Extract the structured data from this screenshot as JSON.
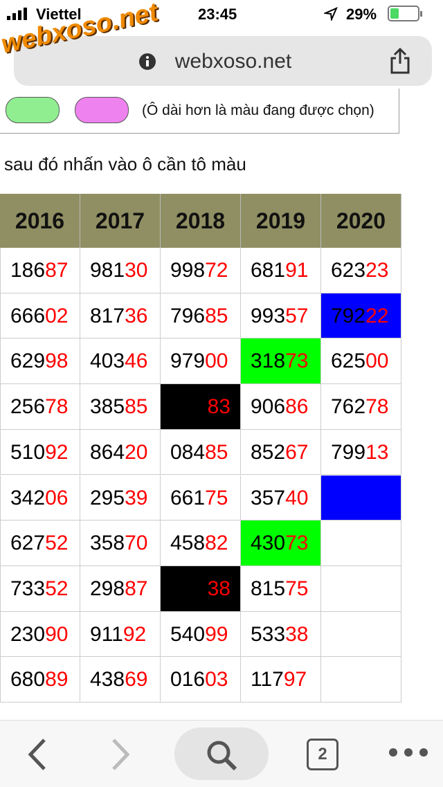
{
  "status_bar": {
    "carrier": "Viettel",
    "time": "23:45",
    "battery": "29%"
  },
  "watermark": "webxoso.net",
  "url_bar": {
    "url": "webxoso.net"
  },
  "color_picker": {
    "note": "(Ô dài hơn là màu đang được chọn)",
    "colors": [
      "#90ee90",
      "#ee82ee"
    ]
  },
  "instruction": "sau đó nhấn vào ô cần tô màu",
  "table": {
    "header_color": "#8f8f63",
    "headers": [
      "2016",
      "2017",
      "2018",
      "2019",
      "2020"
    ],
    "rows": [
      [
        {
          "prefix": "186",
          "suffix": "87"
        },
        {
          "prefix": "981",
          "suffix": "30"
        },
        {
          "prefix": "998",
          "suffix": "72"
        },
        {
          "prefix": "681",
          "suffix": "91"
        },
        {
          "prefix": "623",
          "suffix": "23"
        }
      ],
      [
        {
          "prefix": "666",
          "suffix": "02"
        },
        {
          "prefix": "817",
          "suffix": "36"
        },
        {
          "prefix": "796",
          "suffix": "85"
        },
        {
          "prefix": "993",
          "suffix": "57"
        },
        {
          "prefix": "792",
          "suffix": "22",
          "bg": "#0000ff"
        }
      ],
      [
        {
          "prefix": "629",
          "suffix": "98"
        },
        {
          "prefix": "403",
          "suffix": "46"
        },
        {
          "prefix": "979",
          "suffix": "00"
        },
        {
          "prefix": "318",
          "suffix": "73",
          "bg": "#00ff00"
        },
        {
          "prefix": "625",
          "suffix": "00"
        }
      ],
      [
        {
          "prefix": "256",
          "suffix": "78"
        },
        {
          "prefix": "385",
          "suffix": "85"
        },
        {
          "suffix": "83",
          "bg": "#000000"
        },
        {
          "prefix": "906",
          "suffix": "86"
        },
        {
          "prefix": "762",
          "suffix": "78"
        }
      ],
      [
        {
          "prefix": "510",
          "suffix": "92"
        },
        {
          "prefix": "864",
          "suffix": "20"
        },
        {
          "prefix": "084",
          "suffix": "85"
        },
        {
          "prefix": "852",
          "suffix": "67"
        },
        {
          "prefix": "799",
          "suffix": "13"
        }
      ],
      [
        {
          "prefix": "342",
          "suffix": "06"
        },
        {
          "prefix": "295",
          "suffix": "39"
        },
        {
          "prefix": "661",
          "suffix": "75"
        },
        {
          "prefix": "357",
          "suffix": "40"
        },
        {
          "bg": "#0000ff"
        }
      ],
      [
        {
          "prefix": "627",
          "suffix": "52"
        },
        {
          "prefix": "358",
          "suffix": "70"
        },
        {
          "prefix": "458",
          "suffix": "82"
        },
        {
          "prefix": "430",
          "suffix": "73",
          "bg": "#00ff00"
        },
        null
      ],
      [
        {
          "prefix": "733",
          "suffix": "52"
        },
        {
          "prefix": "298",
          "suffix": "87"
        },
        {
          "suffix": "38",
          "bg": "#000000"
        },
        {
          "prefix": "815",
          "suffix": "75"
        },
        null
      ],
      [
        {
          "prefix": "230",
          "suffix": "90"
        },
        {
          "prefix": "911",
          "suffix": "92"
        },
        {
          "prefix": "540",
          "suffix": "99"
        },
        {
          "prefix": "533",
          "suffix": "38"
        },
        null
      ],
      [
        {
          "prefix": "680",
          "suffix": "89"
        },
        {
          "prefix": "438",
          "suffix": "69"
        },
        {
          "prefix": "016",
          "suffix": "03"
        },
        {
          "prefix": "117",
          "suffix": "97"
        },
        null
      ]
    ]
  },
  "toolbar": {
    "tab_count": "2"
  }
}
